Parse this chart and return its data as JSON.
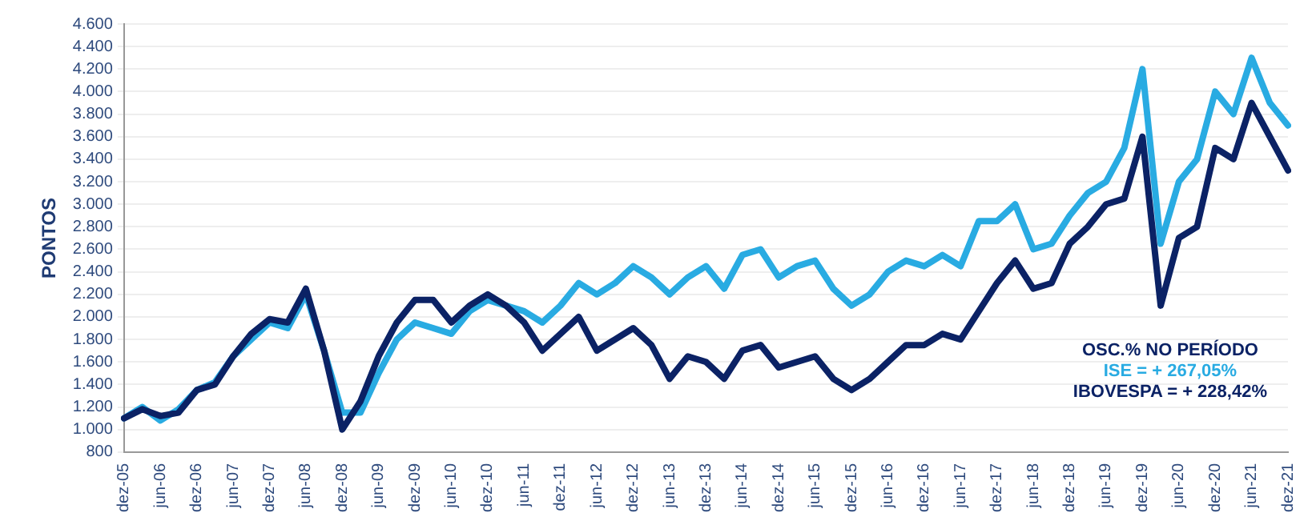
{
  "chart_data": {
    "type": "line",
    "ylabel": "PONTOS",
    "categories": [
      "dez-05",
      null,
      "jun-06",
      null,
      "dez-06",
      null,
      "jun-07",
      null,
      "dez-07",
      null,
      "jun-08",
      null,
      "dez-08",
      null,
      "jun-09",
      null,
      "dez-09",
      null,
      "jun-10",
      null,
      "dez-10",
      null,
      "jun-11",
      null,
      "dez-11",
      null,
      "jun-12",
      null,
      "dez-12",
      null,
      "jun-13",
      null,
      "dez-13",
      null,
      "jun-14",
      null,
      "dez-14",
      null,
      "jun-15",
      null,
      "dez-15",
      null,
      "jun-16",
      null,
      "dez-16",
      null,
      "jun-17",
      null,
      "dez-17",
      null,
      "jun-18",
      null,
      "dez-18",
      null,
      "jun-19",
      null,
      "dez-19",
      null,
      "jun-20",
      null,
      "dez-20",
      null,
      "jun-21",
      null,
      "dez-21"
    ],
    "series": [
      {
        "color": "#29abe2",
        "values": [
          1100,
          1200,
          1080,
          1180,
          1350,
          1420,
          1650,
          1800,
          1950,
          1900,
          2200,
          1700,
          1150,
          1150,
          1500,
          1800,
          1950,
          1900,
          1850,
          2050,
          2150,
          2100,
          2050,
          1950,
          2100,
          2300,
          2200,
          2300,
          2450,
          2350,
          2200,
          2350,
          2450,
          2250,
          2550,
          2600,
          2350,
          2450,
          2500,
          2250,
          2100,
          2200,
          2400,
          2500,
          2450,
          2550,
          2450,
          2850,
          2850,
          3000,
          2600,
          2650,
          2900,
          3100,
          3200,
          3500,
          4200,
          2650,
          3200,
          3400,
          4000,
          3800,
          4300,
          3900,
          3700
        ]
      },
      {
        "color": "#0b2265",
        "values": [
          1100,
          1180,
          1120,
          1150,
          1350,
          1400,
          1650,
          1850,
          1980,
          1950,
          2250,
          1700,
          1000,
          1250,
          1650,
          1950,
          2150,
          2150,
          1950,
          2100,
          2200,
          2100,
          1950,
          1700,
          1850,
          2000,
          1700,
          1800,
          1900,
          1750,
          1450,
          1650,
          1600,
          1450,
          1700,
          1750,
          1550,
          1600,
          1650,
          1450,
          1350,
          1450,
          1600,
          1750,
          1750,
          1850,
          1800,
          2050,
          2300,
          2500,
          2250,
          2300,
          2650,
          2800,
          3000,
          3050,
          3600,
          2100,
          2700,
          2800,
          3500,
          3400,
          3900,
          3600,
          3300
        ]
      }
    ],
    "ylim": [
      800,
      4600
    ],
    "yticks": [
      {
        "value": 800,
        "label": "800"
      },
      {
        "value": 1000,
        "label": "1.000"
      },
      {
        "value": 1200,
        "label": "1.200"
      },
      {
        "value": 1400,
        "label": "1.400"
      },
      {
        "value": 1600,
        "label": "1.600"
      },
      {
        "value": 1800,
        "label": "1.800"
      },
      {
        "value": 2000,
        "label": "2.000"
      },
      {
        "value": 2200,
        "label": "2.200"
      },
      {
        "value": 2400,
        "label": "2.400"
      },
      {
        "value": 2600,
        "label": "2.600"
      },
      {
        "value": 2800,
        "label": "2.800"
      },
      {
        "value": 3000,
        "label": "3.000"
      },
      {
        "value": 3200,
        "label": "3.200"
      },
      {
        "value": 3400,
        "label": "3.400"
      },
      {
        "value": 3600,
        "label": "3.600"
      },
      {
        "value": 3800,
        "label": "3.800"
      },
      {
        "value": 4000,
        "label": "4.000"
      },
      {
        "value": 4200,
        "label": "4.200"
      },
      {
        "value": 4400,
        "label": "4.400"
      },
      {
        "value": 4600,
        "label": "4.600"
      }
    ],
    "grid": "y",
    "legend": false,
    "marker": "none",
    "line_style": "solid",
    "annotations": [
      "OSC.%  NO PERÍODO",
      "ISE = + 267,05%",
      "IBOVESPA = + 228,42%"
    ]
  }
}
